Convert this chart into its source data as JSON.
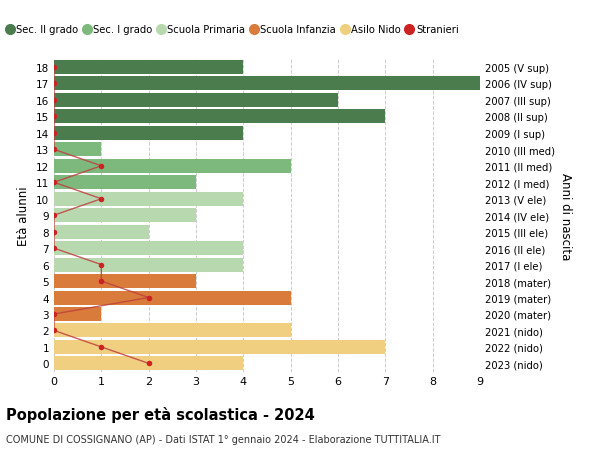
{
  "ages": [
    18,
    17,
    16,
    15,
    14,
    13,
    12,
    11,
    10,
    9,
    8,
    7,
    6,
    5,
    4,
    3,
    2,
    1,
    0
  ],
  "right_labels": [
    "2005 (V sup)",
    "2006 (IV sup)",
    "2007 (III sup)",
    "2008 (II sup)",
    "2009 (I sup)",
    "2010 (III med)",
    "2011 (II med)",
    "2012 (I med)",
    "2013 (V ele)",
    "2014 (IV ele)",
    "2015 (III ele)",
    "2016 (II ele)",
    "2017 (I ele)",
    "2018 (mater)",
    "2019 (mater)",
    "2020 (mater)",
    "2021 (nido)",
    "2022 (nido)",
    "2023 (nido)"
  ],
  "bar_values": [
    4,
    9,
    6,
    7,
    4,
    1,
    5,
    3,
    4,
    3,
    2,
    4,
    4,
    3,
    5,
    1,
    5,
    7,
    4
  ],
  "bar_colors": [
    "#4a7c4e",
    "#4a7c4e",
    "#4a7c4e",
    "#4a7c4e",
    "#4a7c4e",
    "#7db87d",
    "#7db87d",
    "#7db87d",
    "#b8d9b0",
    "#b8d9b0",
    "#b8d9b0",
    "#b8d9b0",
    "#b8d9b0",
    "#d97b3a",
    "#d97b3a",
    "#d97b3a",
    "#f0d080",
    "#f0d080",
    "#f0d080"
  ],
  "stranieri_values": [
    0,
    0,
    0,
    0,
    0,
    0,
    1,
    0,
    1,
    0,
    0,
    0,
    1,
    1,
    2,
    0,
    0,
    1,
    2
  ],
  "legend_labels": [
    "Sec. II grado",
    "Sec. I grado",
    "Scuola Primaria",
    "Scuola Infanzia",
    "Asilo Nido",
    "Stranieri"
  ],
  "legend_colors": [
    "#4a7c4e",
    "#7db87d",
    "#b8d9b0",
    "#d97b3a",
    "#f0d080",
    "#cc2222"
  ],
  "title": "Popolazione per età scolastica - 2024",
  "subtitle": "COMUNE DI COSSIGNANO (AP) - Dati ISTAT 1° gennaio 2024 - Elaborazione TUTTITALIA.IT",
  "ylabel_left": "Età alunni",
  "ylabel_right": "Anni di nascita",
  "xlim": [
    0,
    9
  ],
  "line_color": "#c04040",
  "dot_color": "#cc2222",
  "background_color": "#ffffff",
  "grid_color": "#cccccc"
}
